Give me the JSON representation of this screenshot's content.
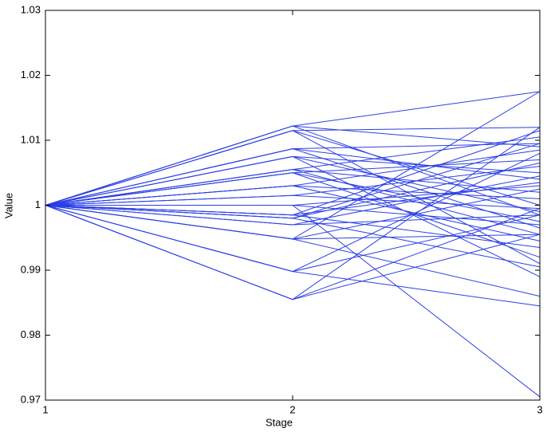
{
  "chart_data": {
    "type": "line",
    "xlabel": "Stage",
    "ylabel": "Value",
    "color": "#2b3fe6",
    "x": [
      1,
      2,
      3
    ],
    "xlim": [
      1,
      3
    ],
    "xticks": [
      1,
      2,
      3
    ],
    "ylim": [
      0.97,
      1.03
    ],
    "yticks": [
      0.97,
      0.98,
      0.99,
      1,
      1.01,
      1.02,
      1.03
    ],
    "series": [
      {
        "values": [
          1,
          1.0122,
          1.0175
        ]
      },
      {
        "values": [
          1,
          1.0122,
          1.009
        ]
      },
      {
        "values": [
          1,
          1.0122,
          0.9985
        ]
      },
      {
        "values": [
          1,
          1.0115,
          1.012
        ]
      },
      {
        "values": [
          1,
          1.0115,
          1.0
        ]
      },
      {
        "values": [
          1,
          1.0115,
          0.991
        ]
      },
      {
        "values": [
          1,
          1.0087,
          1.0095
        ]
      },
      {
        "values": [
          1,
          1.0087,
          1.004
        ]
      },
      {
        "values": [
          1,
          1.0087,
          0.9965
        ]
      },
      {
        "values": [
          1,
          1.0075,
          1.005
        ]
      },
      {
        "values": [
          1,
          1.0075,
          0.999
        ]
      },
      {
        "values": [
          1,
          1.0075,
          0.989
        ]
      },
      {
        "values": [
          1,
          1.0055,
          1.0105
        ]
      },
      {
        "values": [
          1,
          1.0055,
          1.002
        ]
      },
      {
        "values": [
          1,
          1.0055,
          0.9955
        ]
      },
      {
        "values": [
          1,
          1.005,
          1.007
        ]
      },
      {
        "values": [
          1,
          1.005,
          0.9975
        ]
      },
      {
        "values": [
          1,
          1.005,
          0.992
        ]
      },
      {
        "values": [
          1,
          1.003,
          1.0085
        ]
      },
      {
        "values": [
          1,
          1.003,
          1.001
        ]
      },
      {
        "values": [
          1,
          1.003,
          0.9945
        ]
      },
      {
        "values": [
          1,
          1.0015,
          1.006
        ]
      },
      {
        "values": [
          1,
          1.0015,
          0.9995
        ]
      },
      {
        "values": [
          1,
          1.0,
          1.003
        ]
      },
      {
        "values": [
          1,
          1.0,
          0.9705
        ]
      },
      {
        "values": [
          1,
          1.0,
          0.997
        ]
      },
      {
        "values": [
          1,
          0.9985,
          1.0115
        ]
      },
      {
        "values": [
          1,
          0.9985,
          1.0035
        ]
      },
      {
        "values": [
          1,
          0.9985,
          0.9935
        ]
      },
      {
        "values": [
          1,
          0.998,
          1.0095
        ]
      },
      {
        "values": [
          1,
          0.998,
          1.0065
        ]
      },
      {
        "values": [
          1,
          0.998,
          0.9905
        ]
      },
      {
        "values": [
          1,
          0.997,
          1.0045
        ]
      },
      {
        "values": [
          1,
          0.997,
          0.9985
        ]
      },
      {
        "values": [
          1,
          0.9948,
          1.0175
        ]
      },
      {
        "values": [
          1,
          0.9948,
          1.0025
        ]
      },
      {
        "values": [
          1,
          0.9948,
          0.9955
        ]
      },
      {
        "values": [
          1,
          0.9948,
          0.986
        ]
      },
      {
        "values": [
          1,
          0.9898,
          1.008
        ]
      },
      {
        "values": [
          1,
          0.9898,
          0.9985
        ]
      },
      {
        "values": [
          1,
          0.9898,
          0.9845
        ]
      },
      {
        "values": [
          1,
          0.9855,
          1.012
        ]
      },
      {
        "values": [
          1,
          0.9855,
          0.9995
        ]
      },
      {
        "values": [
          1,
          0.9855,
          0.9955
        ]
      }
    ]
  }
}
